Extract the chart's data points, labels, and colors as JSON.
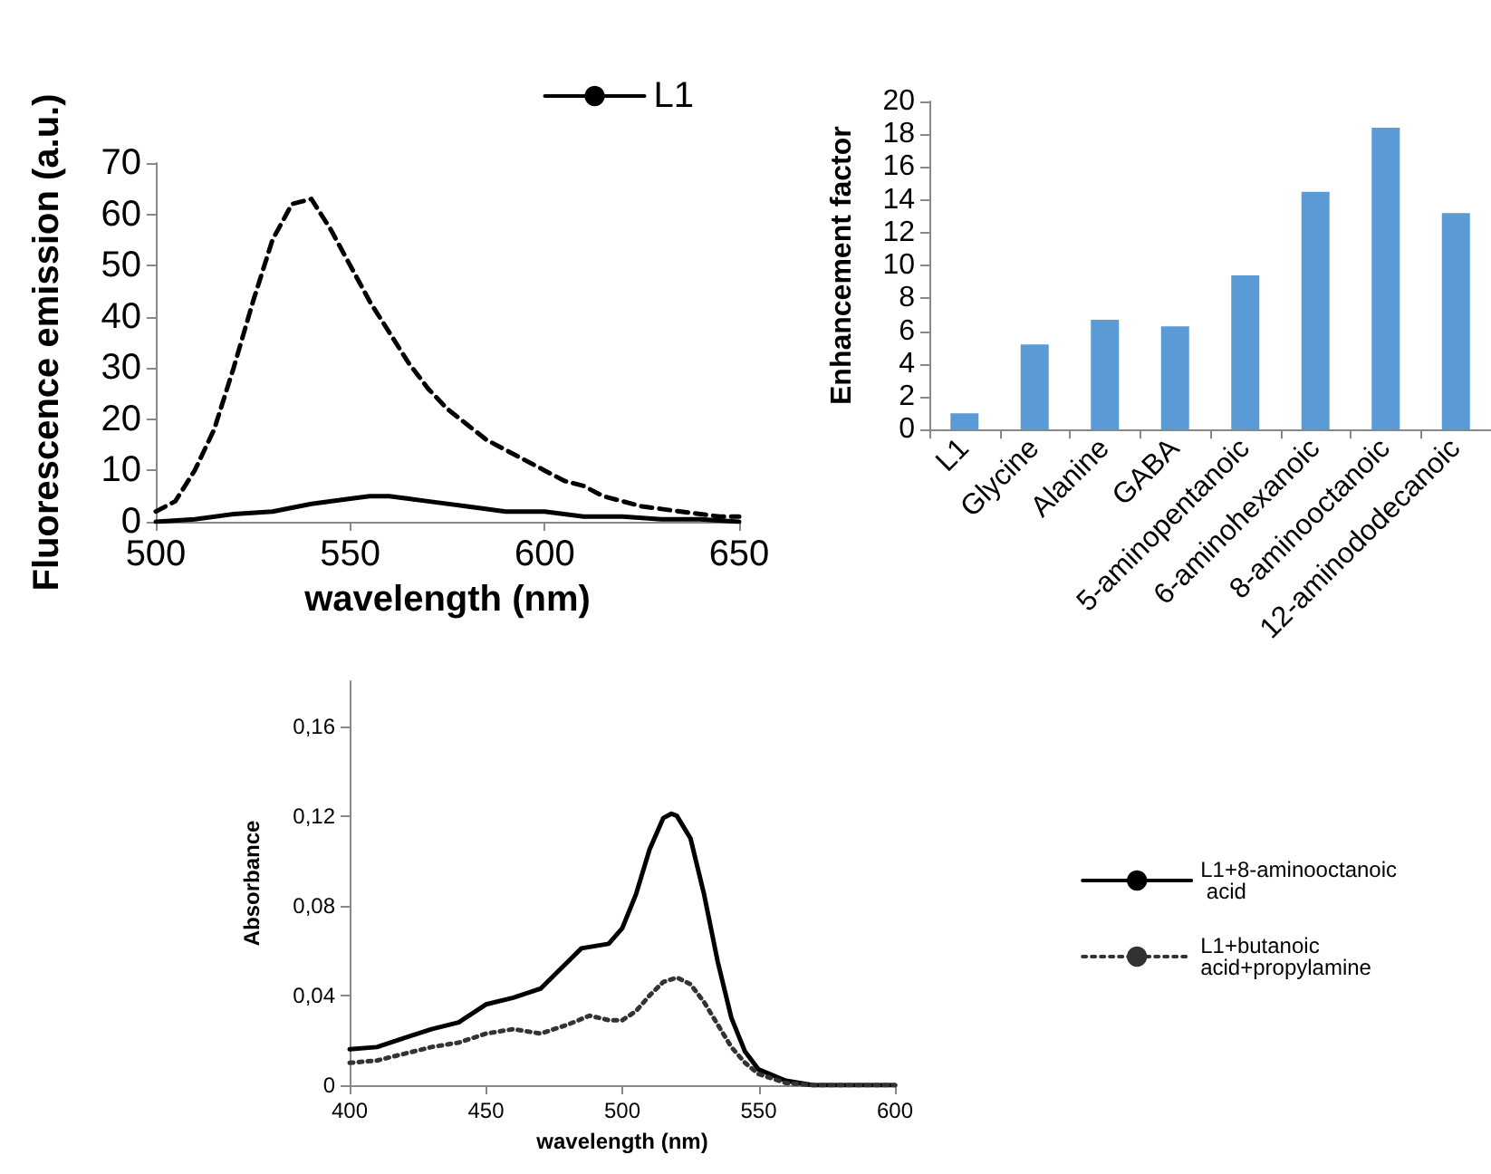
{
  "chart_data": [
    {
      "type": "line",
      "xlabel": "wavelength (nm)",
      "ylabel": "Fluorescence emission (a.u.)",
      "xlim": [
        500,
        650
      ],
      "xticks": [
        500,
        550,
        600,
        650
      ],
      "ylim": [
        0,
        70
      ],
      "yticks": [
        0,
        10,
        20,
        30,
        40,
        50,
        60,
        70
      ],
      "grid": false,
      "legend": "top right",
      "series": [
        {
          "name": "L1",
          "color": "#000000",
          "line_style": "solid",
          "x": [
            500,
            510,
            520,
            530,
            540,
            550,
            555,
            560,
            565,
            570,
            580,
            590,
            600,
            610,
            620,
            630,
            640,
            650
          ],
          "values": [
            0,
            0.5,
            1.5,
            2,
            3.5,
            4.5,
            5,
            5,
            4.5,
            4,
            3,
            2,
            2,
            1,
            1,
            0.5,
            0.5,
            0
          ]
        },
        {
          "color": "#000000",
          "line_style": "dashed",
          "x": [
            500,
            505,
            510,
            515,
            520,
            525,
            530,
            535,
            540,
            545,
            550,
            555,
            560,
            565,
            570,
            575,
            580,
            585,
            590,
            595,
            600,
            605,
            610,
            615,
            620,
            625,
            630,
            635,
            640,
            645,
            650
          ],
          "values": [
            2,
            4,
            10,
            18,
            30,
            43,
            55,
            62,
            63,
            57,
            50,
            43,
            37,
            31,
            26,
            22,
            19,
            16,
            14,
            12,
            10,
            8,
            7,
            5,
            4,
            3,
            2.5,
            2,
            1.5,
            1,
            1
          ]
        }
      ]
    },
    {
      "type": "bar",
      "ylabel": "Enhancement factor",
      "categories": [
        "L1",
        "Glycine",
        "Alanine",
        "GABA",
        "5-aminopentanoic",
        "6-aminohexanoic",
        "8-aminooctanoic",
        "12-aminododecanoic"
      ],
      "values": [
        1,
        5.2,
        6.7,
        6.3,
        9.4,
        14.5,
        18.4,
        13.2
      ],
      "color": "#5b9bd5",
      "ylim": [
        0,
        20
      ],
      "yticks": [
        0,
        2,
        4,
        6,
        8,
        10,
        12,
        14,
        16,
        18,
        20
      ],
      "grid": false
    },
    {
      "type": "line",
      "xlabel": "wavelength (nm)",
      "ylabel": "Absorbance",
      "xlim": [
        400,
        600
      ],
      "xticks": [
        400,
        450,
        500,
        550,
        600
      ],
      "ylim": [
        0,
        0.18
      ],
      "yticks": [
        0,
        {
          "value": 0.04,
          "label": "0,04"
        },
        {
          "value": 0.08,
          "label": "0,08"
        },
        {
          "value": 0.12,
          "label": "0,12"
        },
        {
          "value": 0.16,
          "label": "0,16"
        }
      ],
      "grid": false,
      "legend": "right",
      "series": [
        {
          "name": "L1+8-aminooctanoic acid",
          "color": "#000000",
          "line_style": "solid",
          "x": [
            400,
            410,
            420,
            430,
            440,
            450,
            460,
            470,
            480,
            485,
            490,
            495,
            500,
            505,
            510,
            515,
            518,
            520,
            525,
            530,
            535,
            540,
            545,
            550,
            560,
            570,
            600
          ],
          "values": [
            0.016,
            0.017,
            0.021,
            0.025,
            0.028,
            0.036,
            0.039,
            0.043,
            0.055,
            0.061,
            0.062,
            0.063,
            0.07,
            0.085,
            0.105,
            0.119,
            0.121,
            0.12,
            0.11,
            0.085,
            0.055,
            0.03,
            0.015,
            0.007,
            0.002,
            0,
            0
          ]
        },
        {
          "name": "L1+butanoic acid+propylamine",
          "color": "#333333",
          "line_style": "dotted",
          "x": [
            400,
            410,
            420,
            430,
            440,
            450,
            460,
            470,
            480,
            488,
            495,
            500,
            505,
            510,
            515,
            520,
            525,
            530,
            535,
            540,
            545,
            550,
            560,
            570,
            600
          ],
          "values": [
            0.01,
            0.011,
            0.014,
            0.017,
            0.019,
            0.023,
            0.025,
            0.023,
            0.027,
            0.031,
            0.029,
            0.029,
            0.033,
            0.04,
            0.046,
            0.048,
            0.045,
            0.037,
            0.027,
            0.017,
            0.01,
            0.005,
            0.001,
            0,
            0
          ]
        }
      ]
    }
  ]
}
